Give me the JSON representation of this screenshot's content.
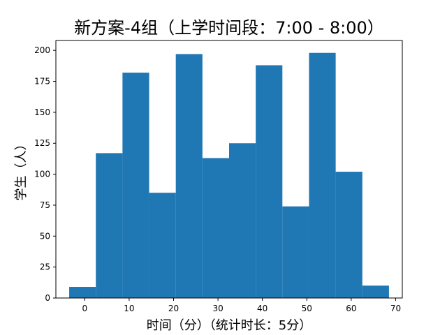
{
  "chart_data": {
    "type": "bar",
    "title": "新方案-4组（上学时间段：7:00 - 8:00）",
    "xlabel": "时间（分）（统计时长：5分）",
    "ylabel": "学生（人）",
    "bin_width": 6.0,
    "bins": [
      {
        "start": -3.5,
        "end": 2.5,
        "value": 9
      },
      {
        "start": 2.5,
        "end": 8.5,
        "value": 117
      },
      {
        "start": 8.5,
        "end": 14.5,
        "value": 182
      },
      {
        "start": 14.5,
        "end": 20.5,
        "value": 85
      },
      {
        "start": 20.5,
        "end": 26.5,
        "value": 197
      },
      {
        "start": 26.5,
        "end": 32.5,
        "value": 113
      },
      {
        "start": 32.5,
        "end": 38.5,
        "value": 125
      },
      {
        "start": 38.5,
        "end": 44.5,
        "value": 188
      },
      {
        "start": 44.5,
        "end": 50.5,
        "value": 74
      },
      {
        "start": 50.5,
        "end": 56.5,
        "value": 198
      },
      {
        "start": 56.5,
        "end": 62.5,
        "value": 102
      },
      {
        "start": 62.5,
        "end": 68.5,
        "value": 10
      }
    ],
    "xlim": [
      -6.5,
      71.5
    ],
    "ylim": [
      0,
      208
    ],
    "xticks": [
      0,
      10,
      20,
      30,
      40,
      50,
      60,
      70
    ],
    "yticks": [
      0,
      25,
      50,
      75,
      100,
      125,
      150,
      175,
      200
    ],
    "bar_color": "#1f77b4",
    "grid": false
  }
}
